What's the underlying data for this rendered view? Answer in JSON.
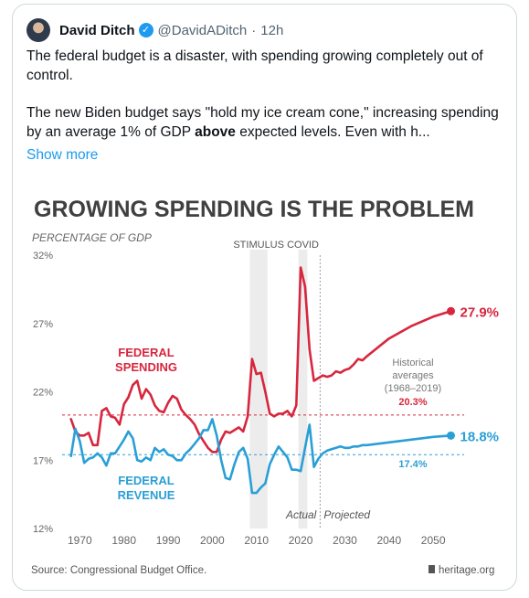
{
  "tweet": {
    "author": "David Ditch",
    "handle": "@DavidADitch",
    "separator": "·",
    "time": "12h",
    "para1": "The federal budget is a disaster, with spending growing completely out of control.",
    "para2_pre": "The new Biden budget says \"hold my ice cream cone,\" increasing spending by an average 1% of GDP ",
    "para2_bold": "above",
    "para2_post": " expected levels. Even with h...",
    "show_more": "Show more"
  },
  "chart_data": {
    "type": "line",
    "title": "GROWING SPENDING IS THE PROBLEM",
    "ylabel": "PERCENTAGE OF GDP",
    "ylim": [
      12,
      32
    ],
    "yticks": [
      "32%",
      "27%",
      "22%",
      "17%",
      "12%"
    ],
    "xlim": [
      1966,
      2057
    ],
    "xticks": [
      "1970",
      "1980",
      "1990",
      "2000",
      "2010",
      "2020",
      "2030",
      "2040",
      "2050"
    ],
    "annotations": {
      "stimulus": "STIMULUS",
      "covid": "COVID",
      "actual": "Actual",
      "projected": "Projected",
      "hist_line1": "Historical",
      "hist_line2": "averages",
      "hist_line3": "(1968–2019)"
    },
    "spending_label1": "FEDERAL",
    "spending_label2": "SPENDING",
    "revenue_label1": "FEDERAL",
    "revenue_label2": "REVENUE",
    "spending_hist_avg": "20.3%",
    "revenue_hist_avg": "17.4%",
    "spending_hist_value": 20.3,
    "revenue_hist_value": 17.4,
    "spending_end": "27.9%",
    "revenue_end": "18.8%",
    "colors": {
      "spending": "#d7263d",
      "revenue": "#2a9fd6",
      "shade": "#ececec"
    },
    "series": [
      {
        "name": "FEDERAL SPENDING",
        "x": [
          1968,
          1969,
          1970,
          1971,
          1972,
          1973,
          1974,
          1975,
          1976,
          1977,
          1978,
          1979,
          1980,
          1981,
          1982,
          1983,
          1984,
          1985,
          1986,
          1987,
          1988,
          1989,
          1990,
          1991,
          1992,
          1993,
          1994,
          1995,
          1996,
          1997,
          1998,
          1999,
          2000,
          2001,
          2002,
          2003,
          2004,
          2005,
          2006,
          2007,
          2008,
          2009,
          2010,
          2011,
          2012,
          2013,
          2014,
          2015,
          2016,
          2017,
          2018,
          2019,
          2020,
          2021,
          2022,
          2023,
          2024,
          2025,
          2026,
          2027,
          2028,
          2029,
          2030,
          2031,
          2032,
          2033,
          2034,
          2035,
          2040,
          2045,
          2050,
          2054
        ],
        "y": [
          20.0,
          19.1,
          18.8,
          18.8,
          19.0,
          18.1,
          18.1,
          20.6,
          20.8,
          20.2,
          20.1,
          19.6,
          21.1,
          21.6,
          22.5,
          22.8,
          21.5,
          22.2,
          21.8,
          21.0,
          20.6,
          20.5,
          21.2,
          21.7,
          21.5,
          20.7,
          20.3,
          20.0,
          19.6,
          18.9,
          18.4,
          17.9,
          17.6,
          17.6,
          18.5,
          19.1,
          19.0,
          19.2,
          19.4,
          19.1,
          20.2,
          24.4,
          23.3,
          23.4,
          22.0,
          20.4,
          20.2,
          20.4,
          20.4,
          20.6,
          20.2,
          21.0,
          31.1,
          29.7,
          25.1,
          22.8,
          23.0,
          23.2,
          23.1,
          23.2,
          23.5,
          23.4,
          23.6,
          23.7,
          24.0,
          24.4,
          24.3,
          24.6,
          25.9,
          26.8,
          27.5,
          27.9
        ]
      },
      {
        "name": "FEDERAL REVENUE",
        "x": [
          1968,
          1969,
          1970,
          1971,
          1972,
          1973,
          1974,
          1975,
          1976,
          1977,
          1978,
          1979,
          1980,
          1981,
          1982,
          1983,
          1984,
          1985,
          1986,
          1987,
          1988,
          1989,
          1990,
          1991,
          1992,
          1993,
          1994,
          1995,
          1996,
          1997,
          1998,
          1999,
          2000,
          2001,
          2002,
          2003,
          2004,
          2005,
          2006,
          2007,
          2008,
          2009,
          2010,
          2011,
          2012,
          2013,
          2014,
          2015,
          2016,
          2017,
          2018,
          2019,
          2020,
          2021,
          2022,
          2023,
          2024,
          2025,
          2026,
          2027,
          2028,
          2029,
          2030,
          2031,
          2032,
          2033,
          2034,
          2035,
          2040,
          2045,
          2050,
          2054
        ],
        "y": [
          17.3,
          19.3,
          18.4,
          16.8,
          17.1,
          17.2,
          17.5,
          17.2,
          16.6,
          17.5,
          17.5,
          18.0,
          18.5,
          19.1,
          18.6,
          17.0,
          16.9,
          17.2,
          17.0,
          17.9,
          17.6,
          17.8,
          17.4,
          17.3,
          17.0,
          17.0,
          17.5,
          17.8,
          18.2,
          18.6,
          19.2,
          19.2,
          20.0,
          18.8,
          17.0,
          15.7,
          15.6,
          16.7,
          17.6,
          17.9,
          17.1,
          14.6,
          14.6,
          15.0,
          15.3,
          16.7,
          17.4,
          18.0,
          17.6,
          17.2,
          16.3,
          16.3,
          16.2,
          17.9,
          19.6,
          16.5,
          17.1,
          17.5,
          17.7,
          17.8,
          17.9,
          18.0,
          17.9,
          17.9,
          18.0,
          18.0,
          18.1,
          18.1,
          18.3,
          18.5,
          18.7,
          18.8
        ]
      }
    ],
    "source": "Source: Congressional Budget Office.",
    "brand": "heritage.org"
  }
}
